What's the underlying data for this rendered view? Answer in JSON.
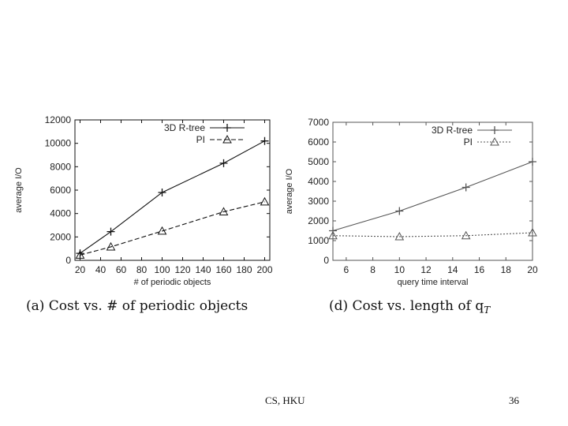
{
  "slide": {
    "footer_center": "CS, HKU",
    "page_number": "36"
  },
  "chart_data": [
    {
      "type": "line",
      "caption": "(a) Cost vs. # of periodic objects",
      "xlabel": "# of periodic objects",
      "ylabel": "average I/O",
      "xlim": [
        15,
        205
      ],
      "ylim": [
        0,
        12000
      ],
      "xticks": [
        20,
        40,
        60,
        80,
        100,
        120,
        140,
        160,
        180,
        200
      ],
      "yticks": [
        0,
        2000,
        4000,
        6000,
        8000,
        10000,
        12000
      ],
      "legend_position": "top-right",
      "series": [
        {
          "name": "3D R-tree",
          "marker": "plus",
          "dash": "solid",
          "x": [
            20,
            50,
            100,
            160,
            200
          ],
          "values": [
            600,
            2450,
            5800,
            8300,
            10200
          ]
        },
        {
          "name": "PI",
          "marker": "triangle",
          "dash": "dashed",
          "x": [
            20,
            50,
            100,
            160,
            200
          ],
          "values": [
            450,
            1150,
            2500,
            4150,
            5000
          ]
        }
      ]
    },
    {
      "type": "line",
      "caption": "(d) Cost vs. length of q",
      "caption_sub": "T",
      "xlabel": "query time interval",
      "ylabel": "average I/O",
      "xlim": [
        5,
        20
      ],
      "ylim": [
        0,
        7000
      ],
      "xticks": [
        6,
        8,
        10,
        12,
        14,
        16,
        18,
        20
      ],
      "yticks": [
        0,
        1000,
        2000,
        3000,
        4000,
        5000,
        6000,
        7000
      ],
      "legend_position": "top-right",
      "series": [
        {
          "name": "3D R-tree",
          "marker": "plus",
          "dash": "solid",
          "x": [
            5,
            10,
            15,
            20
          ],
          "values": [
            1500,
            2500,
            3700,
            5000
          ]
        },
        {
          "name": "PI",
          "marker": "triangle",
          "dash": "dotted",
          "x": [
            5,
            10,
            15,
            20
          ],
          "values": [
            1250,
            1200,
            1250,
            1400
          ]
        }
      ]
    }
  ]
}
